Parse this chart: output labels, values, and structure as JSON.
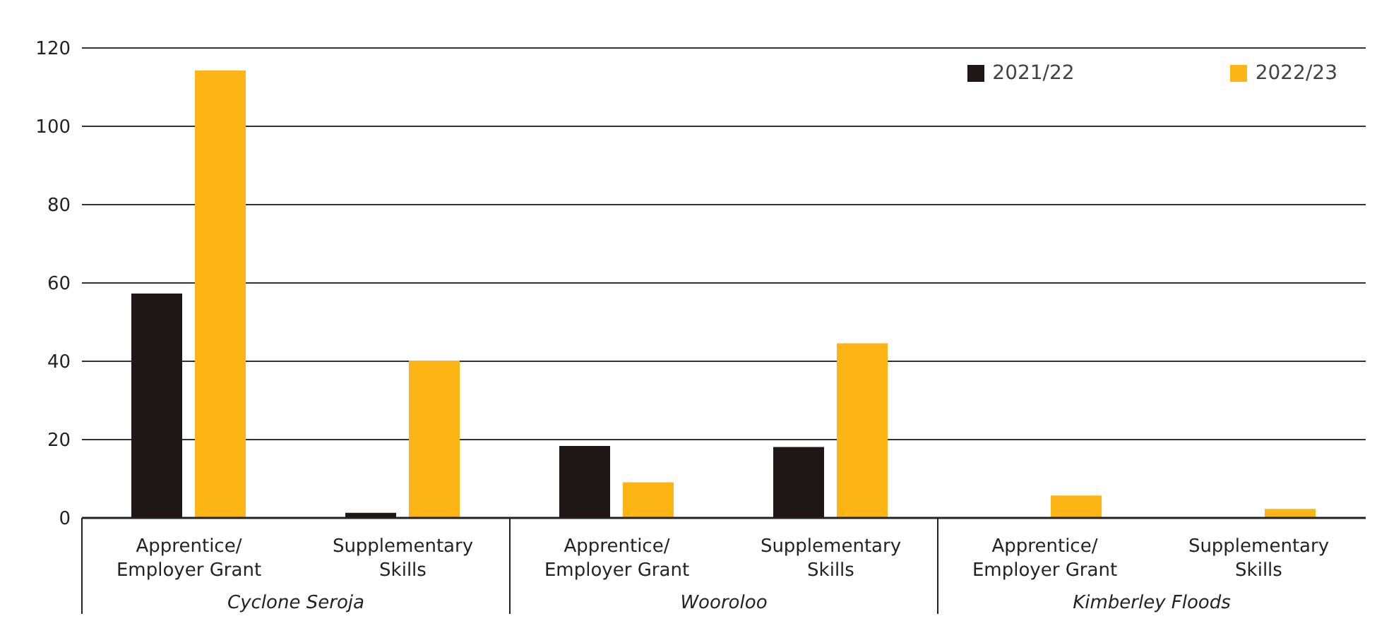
{
  "chart_data": {
    "type": "bar",
    "categories": [
      "Apprentice/ Employer Grant",
      "Supplementary Skills",
      "Apprentice/ Employer Grant",
      "Supplementary Skills",
      "Apprentice/ Employer Grant",
      "Supplementary Skills"
    ],
    "series": [
      {
        "name": "2021/22",
        "color": "#1e1716",
        "values": [
          57.3,
          1.3,
          18.4,
          18.1,
          null,
          null
        ]
      },
      {
        "name": "2022/23",
        "color": "#fdb515",
        "values": [
          114.3,
          40.2,
          9.1,
          44.6,
          5.7,
          2.3
        ]
      }
    ],
    "annotations": [
      "Cyclone Seroja",
      "Wooroloo",
      "Kimberley Floods"
    ],
    "ylim": [
      0,
      120
    ],
    "yticks": [
      0,
      20,
      40,
      60,
      80,
      100,
      120
    ],
    "grid": "y",
    "legend": "top right"
  }
}
